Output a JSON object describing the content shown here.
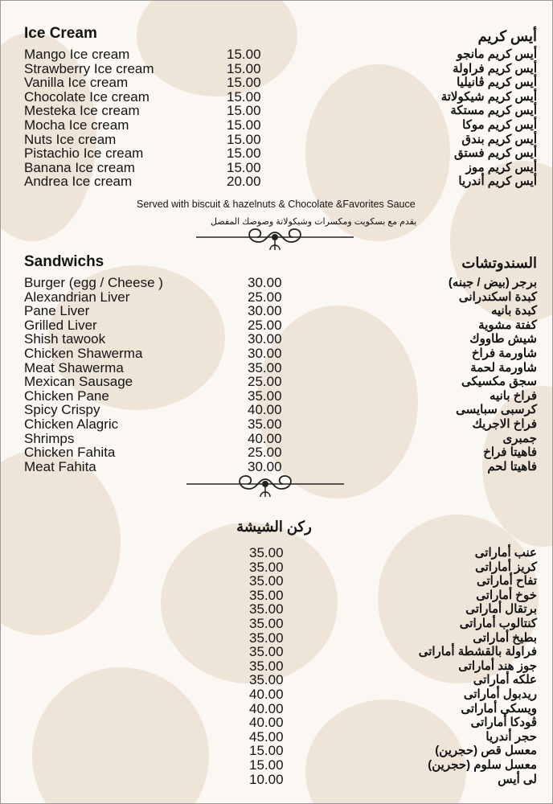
{
  "ice_cream": {
    "title": "Ice Cream",
    "title_ar": "أيس كريم",
    "items": [
      {
        "name": "Mango Ice cream",
        "price": "15.00",
        "name_ar": "أيس كريم مانجو"
      },
      {
        "name": "Strawberry Ice cream",
        "price": "15.00",
        "name_ar": "أيس كريم فراولة"
      },
      {
        "name": "Vanilla Ice cream",
        "price": "15.00",
        "name_ar": "أيس كريم ڤانيليا"
      },
      {
        "name": "Chocolate Ice cream",
        "price": "15.00",
        "name_ar": "أيس كريم شيكولاتة"
      },
      {
        "name": "Mesteka Ice cream",
        "price": "15.00",
        "name_ar": "أيس كريم مستكة"
      },
      {
        "name": "Mocha Ice cream",
        "price": "15.00",
        "name_ar": "أيس كريم موكا"
      },
      {
        "name": "Nuts Ice cream",
        "price": "15.00",
        "name_ar": "أيس كريم بندق"
      },
      {
        "name": "Pistachio Ice cream",
        "price": "15.00",
        "name_ar": "أيس كريم فستق"
      },
      {
        "name": "Banana Ice cream",
        "price": "15.00",
        "name_ar": "أيس كريم موز"
      },
      {
        "name": "Andrea Ice cream",
        "price": "20.00",
        "name_ar": "أيس كريم أندريا"
      }
    ],
    "note": "Served with biscuit & hazelnuts & Chocolate &Favorites Sauce",
    "note_ar": "يقدم مع بسكويت ومكسرات وشيكولاتة وصوصك المفضل"
  },
  "sandwiches": {
    "title": "Sandwichs",
    "title_ar": "السندوتشات",
    "items": [
      {
        "name": "Burger (egg / Cheese )",
        "price": "30.00",
        "name_ar": "برجر (بيض / جبنه)"
      },
      {
        "name": "Alexandrian Liver",
        "price": "25.00",
        "name_ar": "كبدة اسكندرانى"
      },
      {
        "name": "Pane Liver",
        "price": "30.00",
        "name_ar": "كبدة بانيه"
      },
      {
        "name": "Grilled Liver",
        "price": "25.00",
        "name_ar": "كفتة مشوية"
      },
      {
        "name": "Shish tawook",
        "price": "30.00",
        "name_ar": "شيش طاووك"
      },
      {
        "name": "Chicken Shawerma",
        "price": "30.00",
        "name_ar": "شاورمة فراخ"
      },
      {
        "name": "Meat Shawerma",
        "price": "35.00",
        "name_ar": "شاورمة لحمة"
      },
      {
        "name": "Mexican Sausage",
        "price": "25.00",
        "name_ar": "سجق مكسيكى"
      },
      {
        "name": "Chicken Pane",
        "price": "35.00",
        "name_ar": "فراخ بانيه"
      },
      {
        "name": "Spicy Crispy",
        "price": "40.00",
        "name_ar": "كرسبى سبايسى"
      },
      {
        "name": "Chicken Alagric",
        "price": "35.00",
        "name_ar": "فراخ الاجريك"
      },
      {
        "name": "Shrimps",
        "price": "40.00",
        "name_ar": "جمبرى"
      },
      {
        "name": "Chicken Fahita",
        "price": "25.00",
        "name_ar": "فاهيتا فراخ"
      },
      {
        "name": "Meat Fahita",
        "price": "30.00",
        "name_ar": "فاهيتا لحم"
      }
    ]
  },
  "shisha": {
    "title_ar": "ركن الشيشة",
    "items": [
      {
        "price": "35.00",
        "name_ar": "عنب أماراتى"
      },
      {
        "price": "35.00",
        "name_ar": "كريز أماراتى"
      },
      {
        "price": "35.00",
        "name_ar": "تفاح أماراتى"
      },
      {
        "price": "35.00",
        "name_ar": "خوخ أماراتى"
      },
      {
        "price": "35.00",
        "name_ar": "برتقال أماراتى"
      },
      {
        "price": "35.00",
        "name_ar": "كنتالوب أماراتى"
      },
      {
        "price": "35.00",
        "name_ar": "بطيخ أماراتى"
      },
      {
        "price": "35.00",
        "name_ar": "فراولة بالقشطة أماراتى"
      },
      {
        "price": "35.00",
        "name_ar": "جوز هند أماراتى"
      },
      {
        "price": "35.00",
        "name_ar": "علكه أماراتى"
      },
      {
        "price": "40.00",
        "name_ar": "ريدبول أماراتى"
      },
      {
        "price": "40.00",
        "name_ar": "ويسكى أماراتى"
      },
      {
        "price": "40.00",
        "name_ar": "ڤودكا أماراتى"
      },
      {
        "price": "45.00",
        "name_ar": "حجر أندريا"
      },
      {
        "price": "15.00",
        "name_ar": "معسل قص (حجرين)"
      },
      {
        "price": "15.00",
        "name_ar": "معسل سلوم (حجرين)"
      },
      {
        "price": "10.00",
        "name_ar": "لى أيس"
      }
    ]
  },
  "colors": {
    "background": "#fbf8f3",
    "pattern": "#eadfcf",
    "text": "#141414"
  }
}
